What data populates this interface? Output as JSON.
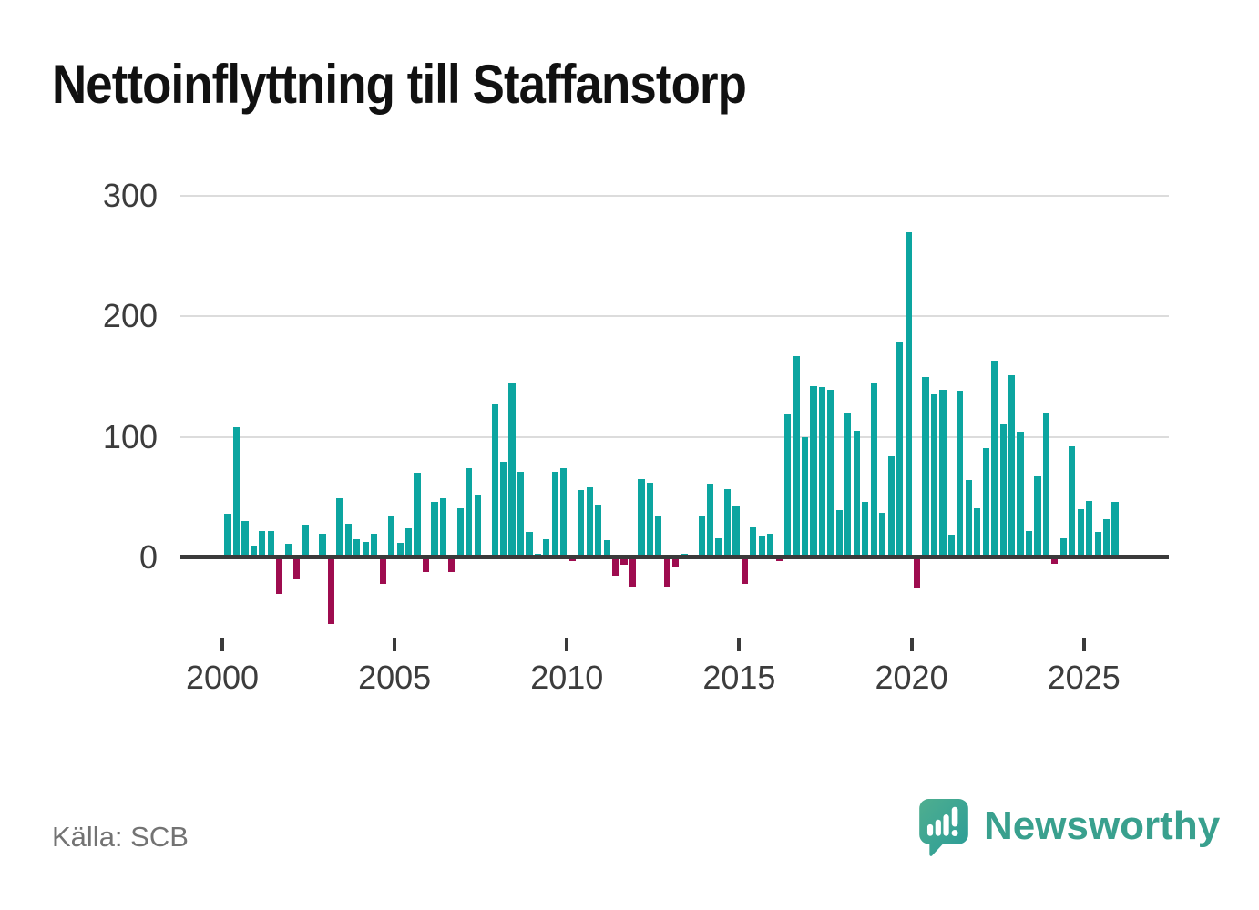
{
  "title": "Nettoinflyttning till Staffanstorp",
  "source": "Källa: SCB",
  "branding": {
    "name": "Newsworthy",
    "icon": "newsworthy-speech-bubble-chart-icon"
  },
  "colors": {
    "bar_positive": "#0ca5a0",
    "bar_negative": "#9e0c4f",
    "axis": "#3a3a3a",
    "grid": "#dcdcdc",
    "tick_text": "#3c3c3c",
    "muted_text": "#737373",
    "brand": "#39a08e",
    "title_text": "#111111"
  },
  "chart_data": {
    "type": "bar",
    "title": "Nettoinflyttning till Staffanstorp",
    "grid": "horizontal",
    "legend": "none",
    "frequency": "quarterly",
    "start_period": "2000-Q1",
    "end_period": "2025-Q4",
    "x_tick_labels": [
      "2000",
      "2005",
      "2010",
      "2015",
      "2020",
      "2025"
    ],
    "y_ticks": [
      0,
      100,
      200,
      300
    ],
    "y_tick_labels": [
      "0",
      "100",
      "200",
      "300"
    ],
    "ylim": [
      -70,
      315
    ],
    "series": [
      {
        "name": "Nettoinflyttning",
        "values": [
          36,
          108,
          30,
          10,
          22,
          22,
          -30,
          11,
          -18,
          27,
          0,
          20,
          -55,
          49,
          28,
          15,
          13,
          20,
          -22,
          35,
          12,
          24,
          70,
          -12,
          46,
          49,
          -12,
          41,
          74,
          52,
          0,
          127,
          79,
          144,
          71,
          21,
          3,
          15,
          71,
          74,
          -3,
          56,
          58,
          44,
          14,
          -15,
          -6,
          -24,
          65,
          62,
          34,
          -24,
          -8,
          3,
          2,
          35,
          61,
          16,
          57,
          42,
          -22,
          25,
          18,
          20,
          -3,
          119,
          167,
          100,
          142,
          141,
          139,
          39,
          120,
          105,
          46,
          145,
          37,
          84,
          179,
          270,
          -26,
          150,
          136,
          139,
          19,
          138,
          64,
          41,
          91,
          163,
          111,
          151,
          104,
          22,
          67,
          120,
          -5,
          16,
          92,
          40,
          47,
          21,
          32,
          46
        ]
      }
    ],
    "positive_color": "#0ca5a0",
    "negative_color": "#9e0c4f"
  }
}
